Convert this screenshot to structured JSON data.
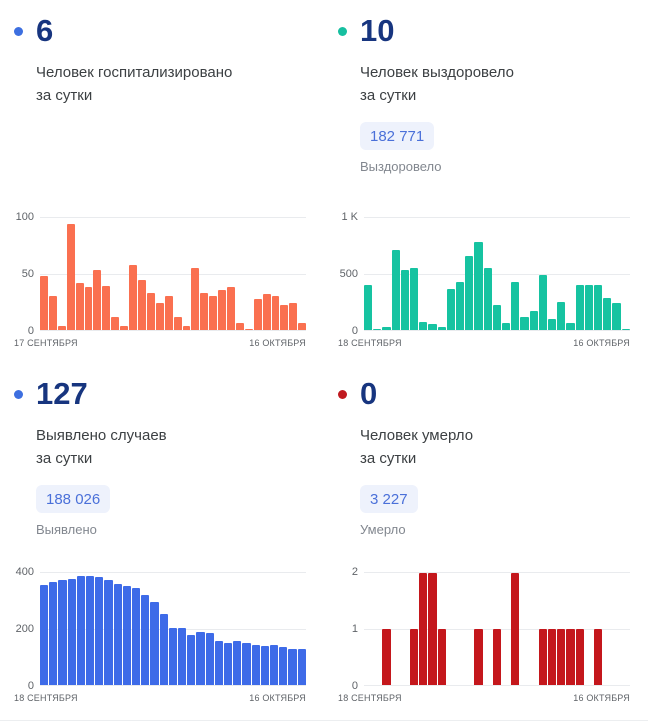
{
  "chart_data": [
    {
      "type": "bar",
      "headline_value": "6",
      "title_line1": "Человек госпитализировано",
      "title_line2": "за сутки",
      "accent_color": "#3d6fe0",
      "bar_color": "#fa7050",
      "x_start": "17 СЕНТЯБРЯ",
      "x_end": "16 ОКТЯБРЯ",
      "ylim": [
        0,
        100
      ],
      "yticks": [
        "0",
        "50",
        "100"
      ],
      "values": [
        48,
        30,
        4,
        95,
        42,
        38,
        54,
        39,
        12,
        4,
        58,
        45,
        33,
        24,
        30,
        12,
        4,
        55,
        33,
        30,
        36,
        38,
        6,
        1,
        28,
        32,
        30,
        22,
        24,
        6
      ]
    },
    {
      "type": "bar",
      "headline_value": "10",
      "title_line1": "Человек выздоровело",
      "title_line2": "за сутки",
      "total_value": "182 771",
      "total_label": "Выздоровело",
      "accent_color": "#16bfa0",
      "bar_color": "#16c3a1",
      "x_start": "18 СЕНТЯБРЯ",
      "x_end": "16 ОКТЯБРЯ",
      "ylim": [
        0,
        1000
      ],
      "yticks": [
        "0",
        "500",
        "1 K"
      ],
      "values": [
        400,
        8,
        30,
        710,
        540,
        555,
        75,
        50,
        30,
        365,
        430,
        665,
        790,
        550,
        225,
        60,
        425,
        115,
        170,
        495,
        95,
        250,
        60,
        400,
        400,
        400,
        290,
        245,
        10
      ]
    },
    {
      "type": "bar",
      "headline_value": "127",
      "title_line1": "Выявлено случаев",
      "title_line2": "за сутки",
      "total_value": "188 026",
      "total_label": "Выявлено",
      "accent_color": "#3d6fe0",
      "bar_color": "#3e6be8",
      "x_start": "18 СЕНТЯБРЯ",
      "x_end": "16 ОКТЯБРЯ",
      "ylim": [
        0,
        400
      ],
      "yticks": [
        "0",
        "200",
        "400"
      ],
      "values": [
        358,
        368,
        375,
        380,
        388,
        390,
        387,
        375,
        362,
        352,
        348,
        320,
        295,
        253,
        205,
        202,
        177,
        190,
        186,
        157,
        149,
        156,
        151,
        143,
        140,
        142,
        134,
        130,
        127
      ]
    },
    {
      "type": "bar",
      "headline_value": "0",
      "title_line1": "Человек умерло",
      "title_line2": "за сутки",
      "total_value": "3 227",
      "total_label": "Умерло",
      "accent_color": "#c01a20",
      "bar_color": "#c4171c",
      "x_start": "18 СЕНТЯБРЯ",
      "x_end": "16 ОКТЯБРЯ",
      "ylim": [
        0,
        2
      ],
      "yticks": [
        "0",
        "1",
        "2"
      ],
      "values": [
        0,
        0,
        1,
        0,
        0,
        1,
        2,
        2,
        1,
        0,
        0,
        0,
        1,
        0,
        1,
        0,
        2,
        0,
        0,
        1,
        1,
        1,
        1,
        1,
        0,
        1,
        0,
        0,
        0
      ]
    }
  ]
}
